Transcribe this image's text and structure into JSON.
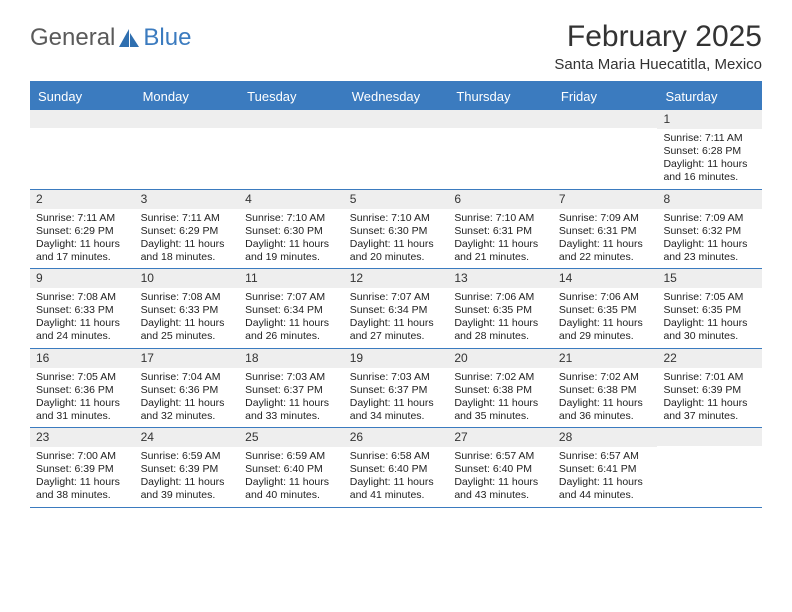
{
  "logo": {
    "text1": "General",
    "text2": "Blue"
  },
  "title": "February 2025",
  "location": "Santa Maria Huecatitla, Mexico",
  "colors": {
    "brand_blue": "#3b7bbf",
    "band_grey": "#eeeeee",
    "text_dark": "#333333",
    "logo_grey": "#5a5a5a"
  },
  "day_headers": [
    "Sunday",
    "Monday",
    "Tuesday",
    "Wednesday",
    "Thursday",
    "Friday",
    "Saturday"
  ],
  "weeks": [
    [
      {
        "n": "",
        "sr": "",
        "ss": "",
        "dl": ""
      },
      {
        "n": "",
        "sr": "",
        "ss": "",
        "dl": ""
      },
      {
        "n": "",
        "sr": "",
        "ss": "",
        "dl": ""
      },
      {
        "n": "",
        "sr": "",
        "ss": "",
        "dl": ""
      },
      {
        "n": "",
        "sr": "",
        "ss": "",
        "dl": ""
      },
      {
        "n": "",
        "sr": "",
        "ss": "",
        "dl": ""
      },
      {
        "n": "1",
        "sr": "7:11 AM",
        "ss": "6:28 PM",
        "dl": "11 hours and 16 minutes."
      }
    ],
    [
      {
        "n": "2",
        "sr": "7:11 AM",
        "ss": "6:29 PM",
        "dl": "11 hours and 17 minutes."
      },
      {
        "n": "3",
        "sr": "7:11 AM",
        "ss": "6:29 PM",
        "dl": "11 hours and 18 minutes."
      },
      {
        "n": "4",
        "sr": "7:10 AM",
        "ss": "6:30 PM",
        "dl": "11 hours and 19 minutes."
      },
      {
        "n": "5",
        "sr": "7:10 AM",
        "ss": "6:30 PM",
        "dl": "11 hours and 20 minutes."
      },
      {
        "n": "6",
        "sr": "7:10 AM",
        "ss": "6:31 PM",
        "dl": "11 hours and 21 minutes."
      },
      {
        "n": "7",
        "sr": "7:09 AM",
        "ss": "6:31 PM",
        "dl": "11 hours and 22 minutes."
      },
      {
        "n": "8",
        "sr": "7:09 AM",
        "ss": "6:32 PM",
        "dl": "11 hours and 23 minutes."
      }
    ],
    [
      {
        "n": "9",
        "sr": "7:08 AM",
        "ss": "6:33 PM",
        "dl": "11 hours and 24 minutes."
      },
      {
        "n": "10",
        "sr": "7:08 AM",
        "ss": "6:33 PM",
        "dl": "11 hours and 25 minutes."
      },
      {
        "n": "11",
        "sr": "7:07 AM",
        "ss": "6:34 PM",
        "dl": "11 hours and 26 minutes."
      },
      {
        "n": "12",
        "sr": "7:07 AM",
        "ss": "6:34 PM",
        "dl": "11 hours and 27 minutes."
      },
      {
        "n": "13",
        "sr": "7:06 AM",
        "ss": "6:35 PM",
        "dl": "11 hours and 28 minutes."
      },
      {
        "n": "14",
        "sr": "7:06 AM",
        "ss": "6:35 PM",
        "dl": "11 hours and 29 minutes."
      },
      {
        "n": "15",
        "sr": "7:05 AM",
        "ss": "6:35 PM",
        "dl": "11 hours and 30 minutes."
      }
    ],
    [
      {
        "n": "16",
        "sr": "7:05 AM",
        "ss": "6:36 PM",
        "dl": "11 hours and 31 minutes."
      },
      {
        "n": "17",
        "sr": "7:04 AM",
        "ss": "6:36 PM",
        "dl": "11 hours and 32 minutes."
      },
      {
        "n": "18",
        "sr": "7:03 AM",
        "ss": "6:37 PM",
        "dl": "11 hours and 33 minutes."
      },
      {
        "n": "19",
        "sr": "7:03 AM",
        "ss": "6:37 PM",
        "dl": "11 hours and 34 minutes."
      },
      {
        "n": "20",
        "sr": "7:02 AM",
        "ss": "6:38 PM",
        "dl": "11 hours and 35 minutes."
      },
      {
        "n": "21",
        "sr": "7:02 AM",
        "ss": "6:38 PM",
        "dl": "11 hours and 36 minutes."
      },
      {
        "n": "22",
        "sr": "7:01 AM",
        "ss": "6:39 PM",
        "dl": "11 hours and 37 minutes."
      }
    ],
    [
      {
        "n": "23",
        "sr": "7:00 AM",
        "ss": "6:39 PM",
        "dl": "11 hours and 38 minutes."
      },
      {
        "n": "24",
        "sr": "6:59 AM",
        "ss": "6:39 PM",
        "dl": "11 hours and 39 minutes."
      },
      {
        "n": "25",
        "sr": "6:59 AM",
        "ss": "6:40 PM",
        "dl": "11 hours and 40 minutes."
      },
      {
        "n": "26",
        "sr": "6:58 AM",
        "ss": "6:40 PM",
        "dl": "11 hours and 41 minutes."
      },
      {
        "n": "27",
        "sr": "6:57 AM",
        "ss": "6:40 PM",
        "dl": "11 hours and 43 minutes."
      },
      {
        "n": "28",
        "sr": "6:57 AM",
        "ss": "6:41 PM",
        "dl": "11 hours and 44 minutes."
      },
      {
        "n": "",
        "sr": "",
        "ss": "",
        "dl": ""
      }
    ]
  ],
  "labels": {
    "sunrise": "Sunrise: ",
    "sunset": "Sunset: ",
    "daylight": "Daylight: "
  }
}
